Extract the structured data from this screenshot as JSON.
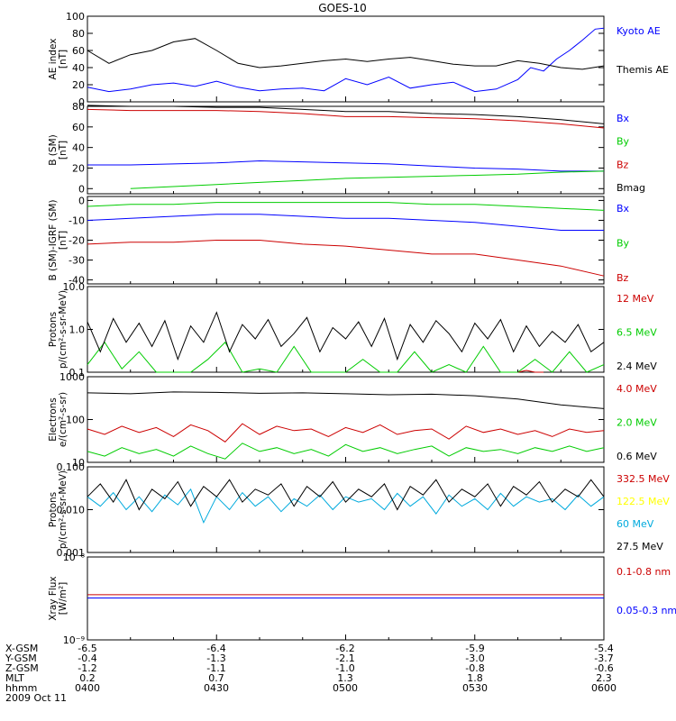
{
  "title": "GOES-10",
  "time_axis": {
    "hhmm_ticks": [
      "0400",
      "0430",
      "0500",
      "0530",
      "0600"
    ],
    "date_label": "2009 Oct 11",
    "rows": [
      {
        "label": "X-GSM",
        "values": [
          "-6.5",
          "-6.4",
          "-6.2",
          "-5.9",
          "-5.4"
        ]
      },
      {
        "label": "Y-GSM",
        "values": [
          "-0.4",
          "-1.3",
          "-2.1",
          "-3.0",
          "-3.7"
        ]
      },
      {
        "label": "Z-GSM",
        "values": [
          "-1.2",
          "-1.1",
          "-1.0",
          "-0.8",
          "-0.6"
        ]
      },
      {
        "label": "MLT",
        "values": [
          "0.2",
          "0.7",
          "1.3",
          "1.8",
          "2.3"
        ]
      },
      {
        "label": "hhmm",
        "values": [
          "0400",
          "0430",
          "0500",
          "0530",
          "0600"
        ]
      }
    ]
  },
  "colors": {
    "black": "#000000",
    "blue": "#0000ff",
    "green": "#00cc00",
    "red": "#cc0000",
    "yellow": "#ffff00",
    "cyan": "#00aadd"
  },
  "chart_data": [
    {
      "type": "line",
      "ylabel": [
        "AE index",
        "[nT]"
      ],
      "ylim": [
        0,
        100
      ],
      "yticks": [
        "0",
        "20",
        "40",
        "60",
        "80",
        "100"
      ],
      "x_range_minutes": [
        0,
        120
      ],
      "series": [
        {
          "name": "Kyoto AE",
          "color": "#0000ff",
          "x": [
            0,
            5,
            10,
            15,
            20,
            25,
            30,
            35,
            40,
            45,
            50,
            55,
            60,
            65,
            70,
            75,
            80,
            85,
            90,
            95,
            100,
            103,
            106,
            109,
            112,
            115,
            118,
            120
          ],
          "y": [
            17,
            12,
            15,
            20,
            22,
            18,
            24,
            17,
            13,
            15,
            16,
            13,
            27,
            20,
            29,
            16,
            20,
            23,
            12,
            15,
            26,
            40,
            36,
            50,
            60,
            72,
            85,
            86
          ]
        },
        {
          "name": "Themis AE",
          "color": "#000000",
          "x": [
            0,
            5,
            10,
            15,
            20,
            25,
            30,
            35,
            40,
            45,
            50,
            55,
            60,
            65,
            70,
            75,
            80,
            85,
            90,
            95,
            100,
            105,
            110,
            115,
            120
          ],
          "y": [
            60,
            45,
            55,
            60,
            70,
            74,
            60,
            45,
            40,
            42,
            45,
            48,
            50,
            47,
            50,
            52,
            48,
            44,
            42,
            42,
            48,
            45,
            40,
            38,
            42
          ]
        }
      ]
    },
    {
      "type": "line",
      "ylabel": [
        "B (SM)",
        "[nT]"
      ],
      "ylim": [
        -5,
        80
      ],
      "yticks": [
        "0",
        "20",
        "40",
        "60",
        "80"
      ],
      "x_range_minutes": [
        0,
        120
      ],
      "series": [
        {
          "name": "Bx",
          "color": "#0000ff",
          "x": [
            0,
            10,
            20,
            30,
            40,
            50,
            60,
            70,
            80,
            90,
            100,
            110,
            120
          ],
          "y": [
            23,
            23,
            24,
            25,
            27,
            26,
            25,
            24,
            22,
            20,
            19,
            17,
            17
          ]
        },
        {
          "name": "By",
          "color": "#00cc00",
          "x": [
            10,
            20,
            30,
            40,
            50,
            60,
            70,
            80,
            90,
            100,
            110,
            120
          ],
          "y": [
            0,
            2,
            4,
            6,
            8,
            10,
            11,
            12,
            13,
            14,
            16,
            17
          ]
        },
        {
          "name": "Bz",
          "color": "#cc0000",
          "x": [
            0,
            10,
            20,
            30,
            40,
            50,
            60,
            70,
            80,
            90,
            100,
            110,
            120
          ],
          "y": [
            77,
            76,
            76,
            76,
            75,
            73,
            70,
            70,
            69,
            68,
            66,
            63,
            59
          ]
        },
        {
          "name": "Bmag",
          "color": "#000000",
          "x": [
            0,
            10,
            20,
            30,
            40,
            50,
            60,
            70,
            80,
            90,
            100,
            110,
            120
          ],
          "y": [
            81,
            80,
            80,
            79,
            79,
            77,
            75,
            75,
            73,
            72,
            70,
            67,
            63
          ]
        }
      ]
    },
    {
      "type": "line",
      "ylabel": [
        "B (SM)-IGRF (SM)",
        "[nT]"
      ],
      "ylim": [
        -42,
        2
      ],
      "yticks": [
        "0",
        "-10",
        "-20",
        "-30",
        "-40"
      ],
      "x_range_minutes": [
        0,
        120
      ],
      "series": [
        {
          "name": "Bx",
          "color": "#0000ff",
          "x": [
            0,
            10,
            20,
            30,
            40,
            50,
            60,
            70,
            80,
            90,
            100,
            110,
            120
          ],
          "y": [
            -10,
            -9,
            -8,
            -7,
            -7,
            -8,
            -9,
            -9,
            -10,
            -11,
            -13,
            -15,
            -15
          ]
        },
        {
          "name": "By",
          "color": "#00cc00",
          "x": [
            0,
            10,
            20,
            30,
            40,
            50,
            60,
            70,
            80,
            90,
            100,
            110,
            120
          ],
          "y": [
            -3,
            -2,
            -2,
            -1,
            -1,
            -1,
            -1,
            -1,
            -2,
            -2,
            -3,
            -4,
            -5
          ]
        },
        {
          "name": "Bz",
          "color": "#cc0000",
          "x": [
            0,
            10,
            20,
            30,
            40,
            50,
            60,
            70,
            80,
            90,
            100,
            110,
            120
          ],
          "y": [
            -22,
            -21,
            -21,
            -20,
            -20,
            -22,
            -23,
            -25,
            -27,
            -27,
            -30,
            -33,
            -38
          ]
        }
      ]
    },
    {
      "type": "line",
      "log_y": true,
      "ylabel": [
        "Protons",
        "p/(cm²-s-sr-MeV)"
      ],
      "ylim": [
        0.1,
        10
      ],
      "yticks": [
        "0.1",
        "1.0",
        "10.0"
      ],
      "x_range_minutes": [
        0,
        120
      ],
      "series": [
        {
          "name": "12 MeV",
          "color": "#cc0000",
          "x": [
            100,
            102,
            104,
            106
          ],
          "y": [
            0.1,
            0.11,
            0.1,
            0.1
          ]
        },
        {
          "name": "6.5 MeV",
          "color": "#00cc00",
          "x": [
            0,
            4,
            8,
            12,
            16,
            20,
            24,
            28,
            32,
            36,
            40,
            44,
            48,
            52,
            56,
            60,
            64,
            68,
            72,
            76,
            80,
            84,
            88,
            92,
            96,
            100,
            104,
            108,
            112,
            116,
            120
          ],
          "y": [
            0.15,
            0.5,
            0.12,
            0.3,
            0.1,
            0.1,
            0.1,
            0.2,
            0.5,
            0.1,
            0.12,
            0.1,
            0.4,
            0.1,
            0.1,
            0.1,
            0.2,
            0.1,
            0.1,
            0.3,
            0.1,
            0.15,
            0.1,
            0.4,
            0.1,
            0.1,
            0.2,
            0.1,
            0.3,
            0.1,
            0.15
          ]
        },
        {
          "name": "2.4 MeV",
          "color": "#000000",
          "x": [
            0,
            3,
            6,
            9,
            12,
            15,
            18,
            21,
            24,
            27,
            30,
            33,
            36,
            39,
            42,
            45,
            48,
            51,
            54,
            57,
            60,
            63,
            66,
            69,
            72,
            75,
            78,
            81,
            84,
            87,
            90,
            93,
            96,
            99,
            102,
            105,
            108,
            111,
            114,
            117,
            120
          ],
          "y": [
            1.5,
            0.3,
            1.8,
            0.5,
            1.4,
            0.4,
            1.6,
            0.2,
            1.2,
            0.5,
            2.5,
            0.3,
            1.3,
            0.6,
            1.7,
            0.4,
            0.8,
            1.9,
            0.3,
            1.1,
            0.6,
            1.5,
            0.4,
            1.8,
            0.2,
            1.3,
            0.5,
            1.6,
            0.8,
            0.3,
            1.4,
            0.6,
            1.7,
            0.3,
            1.2,
            0.4,
            0.9,
            0.5,
            1.3,
            0.3,
            0.5
          ]
        }
      ]
    },
    {
      "type": "line",
      "log_y": true,
      "ylabel": [
        "Electrons",
        "e/(cm²-s-sr)"
      ],
      "ylim": [
        10,
        1000
      ],
      "yticks": [
        "10",
        "100",
        "1000"
      ],
      "x_range_minutes": [
        0,
        120
      ],
      "series": [
        {
          "name": "4.0 MeV",
          "color": "#cc0000",
          "x": [
            0,
            4,
            8,
            12,
            16,
            20,
            24,
            28,
            32,
            36,
            40,
            44,
            48,
            52,
            56,
            60,
            64,
            68,
            72,
            76,
            80,
            84,
            88,
            92,
            96,
            100,
            104,
            108,
            112,
            116,
            120
          ],
          "y": [
            60,
            45,
            70,
            50,
            65,
            40,
            75,
            55,
            30,
            80,
            45,
            70,
            55,
            60,
            40,
            65,
            50,
            75,
            45,
            55,
            60,
            35,
            70,
            50,
            60,
            45,
            55,
            40,
            60,
            50,
            55
          ]
        },
        {
          "name": "2.0 MeV",
          "color": "#00cc00",
          "x": [
            0,
            4,
            8,
            12,
            16,
            20,
            24,
            28,
            32,
            36,
            40,
            44,
            48,
            52,
            56,
            60,
            64,
            68,
            72,
            76,
            80,
            84,
            88,
            92,
            96,
            100,
            104,
            108,
            112,
            116,
            120
          ],
          "y": [
            18,
            14,
            22,
            16,
            20,
            14,
            24,
            16,
            12,
            28,
            18,
            22,
            16,
            20,
            14,
            26,
            18,
            22,
            16,
            20,
            24,
            14,
            22,
            18,
            20,
            16,
            22,
            18,
            24,
            18,
            22
          ]
        },
        {
          "name": "0.6 MeV",
          "color": "#000000",
          "x": [
            0,
            10,
            20,
            30,
            40,
            50,
            60,
            70,
            80,
            90,
            100,
            110,
            120
          ],
          "y": [
            420,
            400,
            440,
            430,
            410,
            420,
            400,
            380,
            390,
            360,
            300,
            220,
            180
          ]
        }
      ]
    },
    {
      "type": "line",
      "log_y": true,
      "ylabel": [
        "Protons",
        "p/(cm²-s-sr-MeV)"
      ],
      "ylim": [
        0.001,
        0.1
      ],
      "yticks": [
        "0.001",
        "0.010",
        "0.100"
      ],
      "x_range_minutes": [
        0,
        120
      ],
      "series": [
        {
          "name": "332.5 MeV",
          "color": "#cc0000",
          "x": [],
          "y": []
        },
        {
          "name": "122.5 MeV",
          "color": "#ffff00",
          "x": [],
          "y": []
        },
        {
          "name": "60 MeV",
          "color": "#00aadd",
          "x": [
            0,
            3,
            6,
            9,
            12,
            15,
            18,
            21,
            24,
            27,
            30,
            33,
            36,
            39,
            42,
            45,
            48,
            51,
            54,
            57,
            60,
            63,
            66,
            69,
            72,
            75,
            78,
            81,
            84,
            87,
            90,
            93,
            96,
            99,
            102,
            105,
            108,
            111,
            114,
            117,
            120
          ],
          "y": [
            0.02,
            0.012,
            0.025,
            0.01,
            0.02,
            0.009,
            0.022,
            0.013,
            0.03,
            0.005,
            0.02,
            0.01,
            0.025,
            0.012,
            0.02,
            0.009,
            0.018,
            0.012,
            0.022,
            0.01,
            0.02,
            0.015,
            0.018,
            0.01,
            0.024,
            0.012,
            0.02,
            0.008,
            0.022,
            0.012,
            0.018,
            0.01,
            0.024,
            0.012,
            0.02,
            0.015,
            0.018,
            0.01,
            0.022,
            0.012,
            0.02
          ]
        },
        {
          "name": "27.5 MeV",
          "color": "#000000",
          "x": [
            0,
            3,
            6,
            9,
            12,
            15,
            18,
            21,
            24,
            27,
            30,
            33,
            36,
            39,
            42,
            45,
            48,
            51,
            54,
            57,
            60,
            63,
            66,
            69,
            72,
            75,
            78,
            81,
            84,
            87,
            90,
            93,
            96,
            99,
            102,
            105,
            108,
            111,
            114,
            117,
            120
          ],
          "y": [
            0.02,
            0.04,
            0.015,
            0.05,
            0.01,
            0.03,
            0.018,
            0.045,
            0.012,
            0.035,
            0.02,
            0.05,
            0.015,
            0.03,
            0.022,
            0.04,
            0.012,
            0.035,
            0.02,
            0.045,
            0.015,
            0.03,
            0.02,
            0.04,
            0.01,
            0.035,
            0.022,
            0.05,
            0.015,
            0.03,
            0.02,
            0.04,
            0.012,
            0.035,
            0.022,
            0.045,
            0.015,
            0.03,
            0.02,
            0.05,
            0.02
          ]
        }
      ]
    },
    {
      "type": "line",
      "log_y": true,
      "ylabel": [
        "Xray Flux",
        "[W/m²]"
      ],
      "ylim": [
        1e-09,
        1e-08
      ],
      "yticks": [
        "10⁻⁹",
        "10⁻⁸"
      ],
      "x_range_minutes": [
        0,
        120
      ],
      "series": [
        {
          "name": "0.1-0.8 nm",
          "color": "#cc0000",
          "x": [
            0,
            120
          ],
          "y": [
            3.5e-09,
            3.5e-09
          ]
        },
        {
          "name": "0.05-0.3 nm",
          "color": "#0000ff",
          "x": [
            0,
            120
          ],
          "y": [
            3.2e-09,
            3.2e-09
          ]
        }
      ]
    }
  ]
}
